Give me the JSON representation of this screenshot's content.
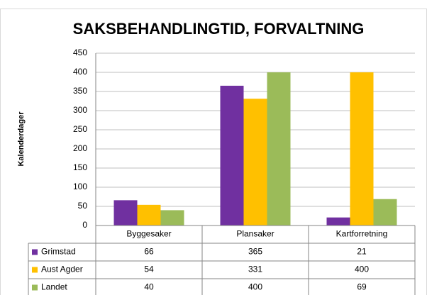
{
  "chart_data": {
    "type": "bar",
    "title": "SAKSBEHANDLINGTID, FORVALTNING",
    "y_label": "Kalenderdager",
    "categories": [
      "Byggesaker",
      "Plansaker",
      "Kartforretning"
    ],
    "series": [
      {
        "name": "Grimstad",
        "color": "#7030a0",
        "values": [
          66,
          365,
          21
        ]
      },
      {
        "name": "Aust Agder",
        "color": "#ffc000",
        "values": [
          54,
          331,
          400
        ]
      },
      {
        "name": "Landet",
        "color": "#9bbb59",
        "values": [
          40,
          400,
          69
        ]
      }
    ],
    "ylim": [
      0,
      450
    ],
    "yticks": [
      0,
      50,
      100,
      150,
      200,
      250,
      300,
      350,
      400,
      450
    ],
    "grid": true
  }
}
